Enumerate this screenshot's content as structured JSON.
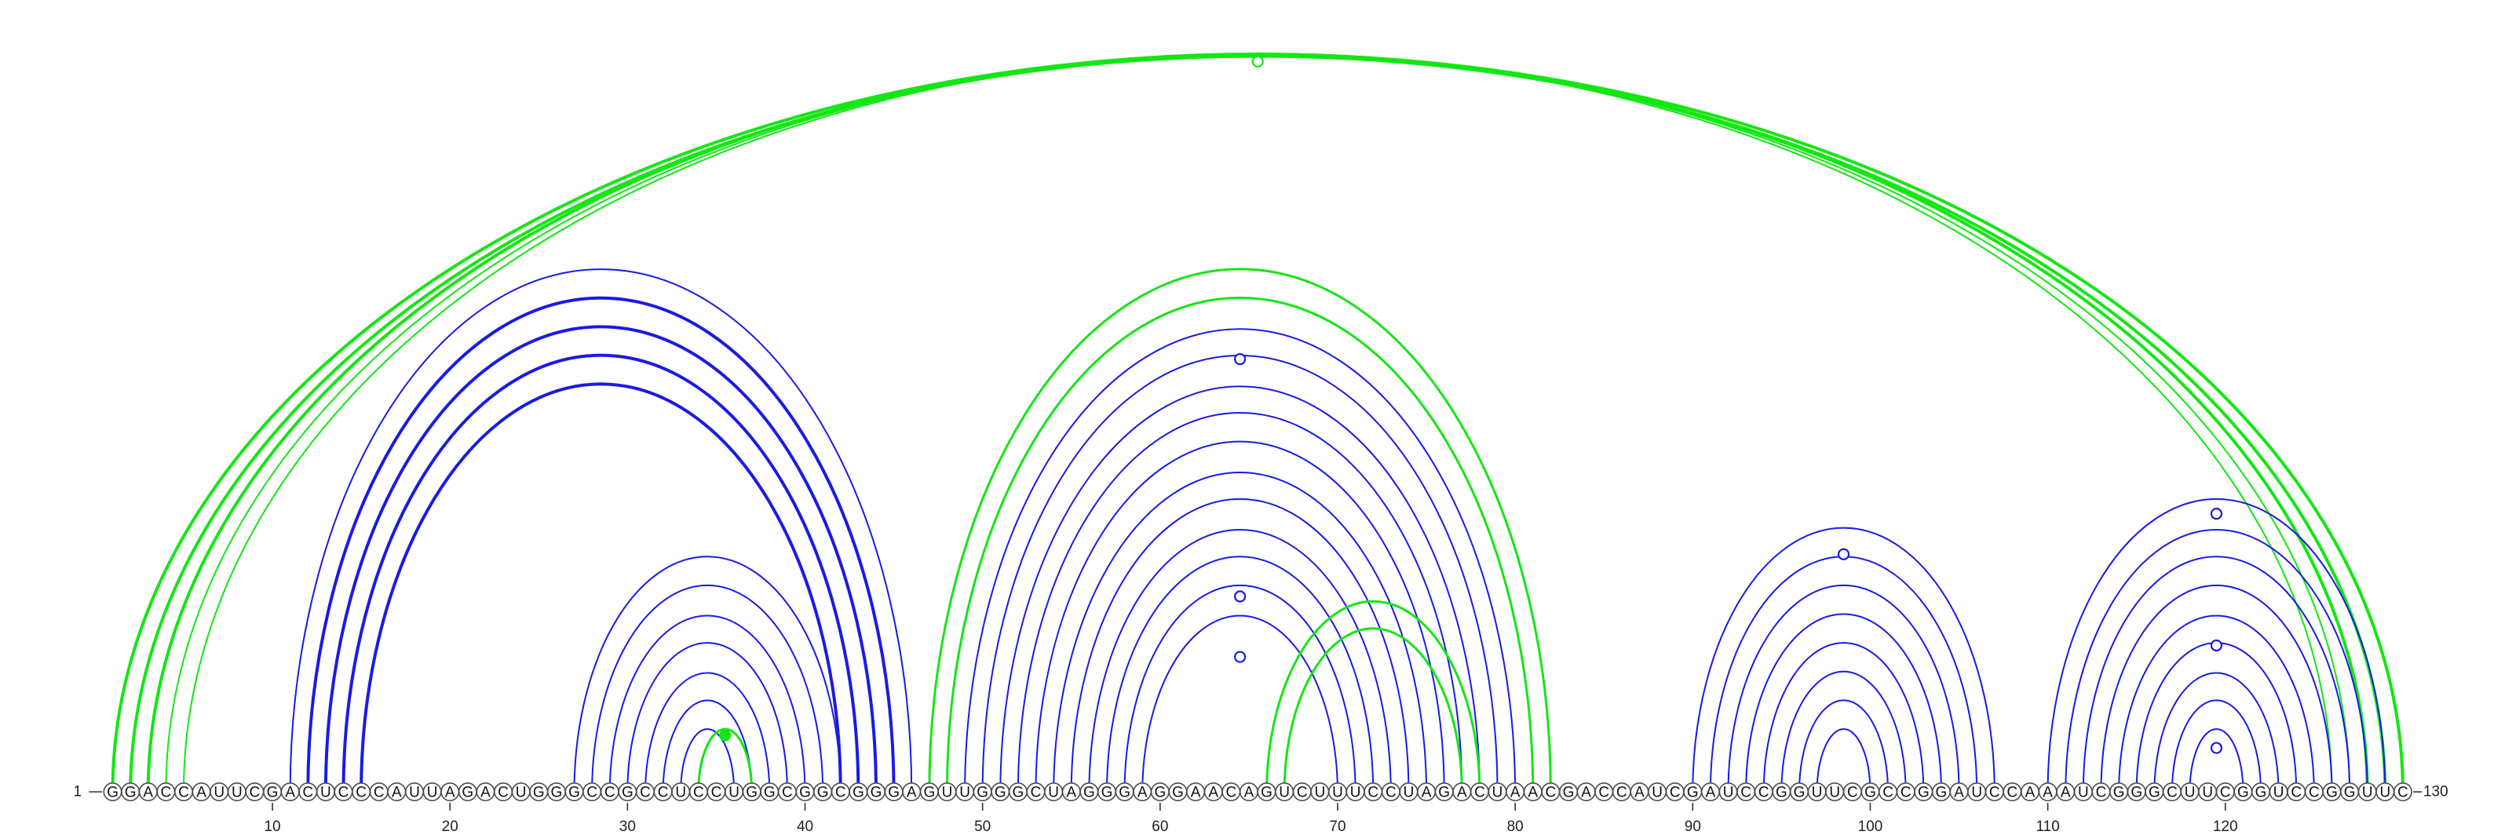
{
  "sequence": {
    "letters": "GGACCAUUCGACUCCCAUUAGACUGGGCCGCCUCCUGGCGGCGGGAGUUGGGCUAGGGAGGAACAGUCUUUCCUAGACUAACGACCAUCGAUCCGGUUCGCCGGAUCCAAAUCGGGCUUCGGUCCGGUUC",
    "start_label": "1",
    "end_label": "130"
  },
  "ticks": [
    10,
    20,
    30,
    40,
    50,
    60,
    70,
    80,
    90,
    100,
    110,
    120
  ],
  "colors": {
    "blue": "#1a1ae6",
    "green": "#14e614",
    "nt_stroke": "#4d4d4d"
  },
  "arc_bundles": [
    {
      "color": "green",
      "pairs": [
        [
          1,
          130
        ],
        [
          2,
          129
        ],
        [
          3,
          128
        ],
        [
          4,
          127
        ],
        [
          5,
          126
        ]
      ],
      "weights": [
        4,
        4,
        4,
        2,
        2
      ]
    },
    {
      "color": "blue",
      "pairs": [
        [
          11,
          46
        ],
        [
          12,
          45
        ],
        [
          13,
          44
        ],
        [
          14,
          43
        ],
        [
          15,
          42
        ]
      ],
      "weights": [
        2,
        4,
        4,
        4,
        4
      ]
    },
    {
      "color": "blue",
      "pairs": [
        [
          27,
          42
        ],
        [
          28,
          41
        ],
        [
          29,
          40
        ],
        [
          30,
          39
        ],
        [
          31,
          38
        ],
        [
          32,
          37
        ],
        [
          33,
          36
        ]
      ],
      "weights": [
        2,
        2,
        2,
        2,
        2,
        2,
        2
      ]
    },
    {
      "color": "green",
      "pairs": [
        [
          34,
          37
        ]
      ],
      "weights": [
        3
      ]
    },
    {
      "color": "green",
      "pairs": [
        [
          47,
          82
        ],
        [
          48,
          81
        ]
      ],
      "weights": [
        3,
        3
      ]
    },
    {
      "color": "blue",
      "pairs": [
        [
          49,
          80
        ],
        [
          50,
          79
        ],
        [
          51,
          78
        ],
        [
          52,
          77
        ],
        [
          53,
          76
        ],
        [
          54,
          75
        ],
        [
          55,
          74
        ],
        [
          56,
          73
        ],
        [
          57,
          72
        ],
        [
          58,
          71
        ],
        [
          59,
          70
        ]
      ],
      "weights": [
        2,
        2,
        2,
        2,
        2,
        2,
        2,
        2,
        2,
        2,
        2
      ]
    },
    {
      "color": "green",
      "pairs": [
        [
          66,
          78
        ],
        [
          67,
          77
        ]
      ],
      "weights": [
        3,
        3
      ]
    },
    {
      "color": "blue",
      "pairs": [
        [
          90,
          107
        ],
        [
          91,
          106
        ],
        [
          92,
          105
        ],
        [
          93,
          104
        ],
        [
          94,
          103
        ],
        [
          95,
          102
        ],
        [
          96,
          101
        ],
        [
          97,
          100
        ]
      ],
      "weights": [
        2,
        2,
        2,
        2,
        2,
        2,
        2,
        2
      ]
    },
    {
      "color": "blue",
      "pairs": [
        [
          110,
          129
        ],
        [
          111,
          128
        ],
        [
          112,
          127
        ],
        [
          113,
          126
        ],
        [
          114,
          125
        ],
        [
          115,
          124
        ],
        [
          116,
          123
        ],
        [
          117,
          122
        ],
        [
          118,
          121
        ]
      ],
      "weights": [
        2,
        2,
        2,
        2,
        2,
        2,
        2,
        2,
        2
      ]
    }
  ],
  "markers": [
    {
      "color": "green",
      "pos": 65.5,
      "level": 0.99,
      "filled": false
    },
    {
      "color": "blue",
      "pos": 64.5,
      "level": 0.93,
      "filled": false
    },
    {
      "color": "blue",
      "pos": 64.5,
      "level": 0.42,
      "filled": false
    },
    {
      "color": "blue",
      "pos": 64.5,
      "level": 0.29,
      "filled": false
    },
    {
      "color": "green",
      "pos": 35.5,
      "level": 0.9,
      "filled": true
    },
    {
      "color": "blue",
      "pos": 98.5,
      "level": 0.9,
      "filled": false
    },
    {
      "color": "blue",
      "pos": 119.5,
      "level": 0.95,
      "filled": false
    },
    {
      "color": "blue",
      "pos": 119.5,
      "level": 0.5,
      "filled": false
    },
    {
      "color": "blue",
      "pos": 119.5,
      "level": 0.15,
      "filled": false
    }
  ]
}
